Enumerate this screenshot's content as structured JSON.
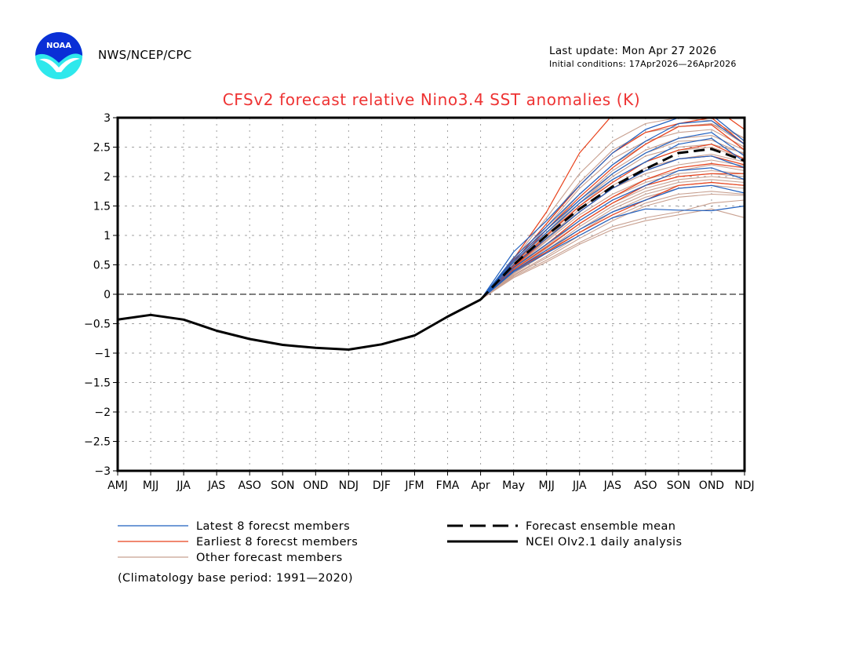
{
  "header": {
    "organization": "NWS/NCEP/CPC",
    "last_update": "Last update: Mon Apr 27 2026",
    "initial_conditions": "Initial conditions: 17Apr2026—26Apr2026",
    "logo_text": "NOAA"
  },
  "colors": {
    "title": "#ee3333",
    "latest_members": "#1f5fbf",
    "earliest_members": "#e8401a",
    "other_members": "#c8a090",
    "ensemble_mean": "#000000",
    "observed": "#000000",
    "grid": "#a0a0a0",
    "logo_blue": "#0a2fd6",
    "logo_cyan": "#2ee8ec"
  },
  "chart_data": {
    "type": "line",
    "title": "CFSv2 forecast relative Nino3.4 SST anomalies (K)",
    "xlabel": "",
    "ylabel": "",
    "x": [
      "AMJ",
      "MJJ",
      "JJA",
      "JAS",
      "ASO",
      "SON",
      "OND",
      "NDJ",
      "DJF",
      "JFM",
      "FMA",
      "Apr",
      "May",
      "MJJ",
      "JJA",
      "JAS",
      "ASO",
      "SON",
      "OND",
      "NDJ"
    ],
    "ylim": [
      -3,
      3
    ],
    "yticks": [
      3,
      2.5,
      2,
      1.5,
      1,
      0.5,
      0,
      -0.5,
      -1,
      -1.5,
      -2,
      -2.5,
      -3
    ],
    "ytick_labels": [
      "3",
      "2.5",
      "2",
      "1.5",
      "1",
      "0.5",
      "0",
      "−0.5",
      "−1",
      "−1.5",
      "−2",
      "−2.5",
      "−3"
    ],
    "grid": true,
    "zero_line": true,
    "observed": {
      "name": "NCEI OIv2.1 daily analysis",
      "x_start_index": 0,
      "values": [
        -0.43,
        -0.35,
        -0.43,
        -0.62,
        -0.76,
        -0.86,
        -0.91,
        -0.94,
        -0.85,
        -0.7,
        -0.38,
        -0.09
      ]
    },
    "forecast_x_start_index": 11,
    "ensemble_mean": {
      "name": "Forecast ensemble mean",
      "values": [
        -0.09,
        0.5,
        1.0,
        1.45,
        1.83,
        2.13,
        2.4,
        2.47,
        2.27
      ]
    },
    "latest_members": {
      "name": "Latest 8 forecst members",
      "series": [
        [
          -0.09,
          0.72,
          1.25,
          1.85,
          2.4,
          2.8,
          3.0,
          3.05,
          2.6
        ],
        [
          -0.09,
          0.62,
          1.15,
          1.7,
          2.2,
          2.6,
          2.9,
          2.95,
          2.55
        ],
        [
          -0.09,
          0.58,
          1.1,
          1.6,
          2.05,
          2.4,
          2.65,
          2.75,
          2.35
        ],
        [
          -0.09,
          0.55,
          1.05,
          1.55,
          1.95,
          2.25,
          2.55,
          2.65,
          2.25
        ],
        [
          -0.09,
          0.5,
          0.95,
          1.4,
          1.8,
          2.1,
          2.3,
          2.35,
          2.15
        ],
        [
          -0.09,
          0.45,
          0.85,
          1.25,
          1.6,
          1.85,
          2.1,
          2.15,
          1.95
        ],
        [
          -0.09,
          0.4,
          0.75,
          1.1,
          1.4,
          1.6,
          1.8,
          1.85,
          1.72
        ],
        [
          -0.09,
          0.38,
          0.7,
          1.0,
          1.3,
          1.45,
          1.43,
          1.42,
          1.5
        ]
      ]
    },
    "earliest_members": {
      "name": "Earliest 8 forecst members",
      "series": [
        [
          -0.09,
          0.6,
          1.4,
          2.4,
          3.05,
          3.3,
          3.3,
          3.2,
          2.8
        ],
        [
          -0.09,
          0.55,
          1.2,
          1.85,
          2.4,
          2.75,
          2.9,
          3.0,
          2.55
        ],
        [
          -0.09,
          0.5,
          1.1,
          1.65,
          2.15,
          2.55,
          2.85,
          2.88,
          2.45
        ],
        [
          -0.09,
          0.48,
          1.0,
          1.5,
          1.9,
          2.25,
          2.45,
          2.55,
          2.3
        ],
        [
          -0.09,
          0.46,
          0.95,
          1.4,
          1.8,
          2.1,
          2.3,
          2.35,
          2.2
        ],
        [
          -0.09,
          0.45,
          0.85,
          1.3,
          1.65,
          1.95,
          2.15,
          2.22,
          2.15
        ],
        [
          -0.09,
          0.42,
          0.8,
          1.2,
          1.55,
          1.85,
          2.0,
          2.05,
          2.05
        ],
        [
          -0.09,
          0.4,
          0.72,
          1.05,
          1.35,
          1.6,
          1.85,
          1.9,
          1.85
        ]
      ]
    },
    "other_members": {
      "name": "Other forecast members",
      "series": [
        [
          -0.09,
          0.58,
          1.3,
          2.05,
          2.6,
          2.9,
          3.0,
          2.95,
          2.65
        ],
        [
          -0.09,
          0.55,
          1.2,
          1.9,
          2.45,
          2.75,
          2.85,
          2.9,
          2.55
        ],
        [
          -0.09,
          0.52,
          1.15,
          1.8,
          2.3,
          2.6,
          2.75,
          2.8,
          2.5
        ],
        [
          -0.09,
          0.5,
          1.05,
          1.6,
          2.1,
          2.45,
          2.65,
          2.7,
          2.45
        ],
        [
          -0.09,
          0.48,
          1.0,
          1.55,
          2.0,
          2.35,
          2.5,
          2.55,
          2.4
        ],
        [
          -0.09,
          0.47,
          0.98,
          1.5,
          1.95,
          2.25,
          2.45,
          2.5,
          2.3
        ],
        [
          -0.09,
          0.46,
          0.95,
          1.45,
          1.85,
          2.15,
          2.3,
          2.38,
          2.25
        ],
        [
          -0.09,
          0.45,
          0.92,
          1.4,
          1.8,
          2.05,
          2.2,
          2.28,
          2.18
        ],
        [
          -0.09,
          0.44,
          0.9,
          1.35,
          1.7,
          1.95,
          2.1,
          2.2,
          2.1
        ],
        [
          -0.09,
          0.43,
          0.85,
          1.3,
          1.65,
          1.9,
          2.05,
          2.1,
          2.05
        ],
        [
          -0.09,
          0.42,
          0.82,
          1.25,
          1.6,
          1.85,
          2.0,
          2.05,
          2.0
        ],
        [
          -0.09,
          0.4,
          0.78,
          1.2,
          1.55,
          1.8,
          1.95,
          2.0,
          1.95
        ],
        [
          -0.09,
          0.38,
          0.75,
          1.15,
          1.5,
          1.75,
          1.9,
          1.95,
          1.9
        ],
        [
          -0.09,
          0.36,
          0.72,
          1.1,
          1.45,
          1.7,
          1.85,
          1.9,
          1.85
        ],
        [
          -0.09,
          0.35,
          0.7,
          1.05,
          1.4,
          1.65,
          1.8,
          1.85,
          1.8
        ],
        [
          -0.09,
          0.33,
          0.65,
          1.0,
          1.3,
          1.55,
          1.7,
          1.75,
          1.7
        ],
        [
          -0.09,
          0.32,
          0.62,
          0.95,
          1.25,
          1.5,
          1.65,
          1.7,
          1.68
        ],
        [
          -0.09,
          0.3,
          0.58,
          0.88,
          1.15,
          1.3,
          1.4,
          1.55,
          1.6
        ],
        [
          -0.09,
          0.28,
          0.55,
          0.85,
          1.1,
          1.25,
          1.35,
          1.45,
          1.3
        ],
        [
          -0.09,
          0.52,
          1.1,
          1.7,
          2.2,
          2.55,
          2.85,
          2.9,
          2.65
        ],
        [
          -0.09,
          0.5,
          1.02,
          1.55,
          2.05,
          2.4,
          2.6,
          2.62,
          2.38
        ]
      ]
    },
    "legend": {
      "placement": "bottom",
      "entries": [
        {
          "label": "Latest 8 forecst members",
          "style": "solid",
          "color_key": "latest_members"
        },
        {
          "label": "Earliest 8 forecst members",
          "style": "solid",
          "color_key": "earliest_members"
        },
        {
          "label": "Other forecast members",
          "style": "solid",
          "color_key": "other_members"
        },
        {
          "label": "Forecast ensemble mean",
          "style": "dashed",
          "color_key": "ensemble_mean"
        },
        {
          "label": "NCEI OIv2.1 daily analysis",
          "style": "solid-thick",
          "color_key": "observed"
        }
      ],
      "footnote": "(Climatology base period: 1991—2020)"
    }
  }
}
